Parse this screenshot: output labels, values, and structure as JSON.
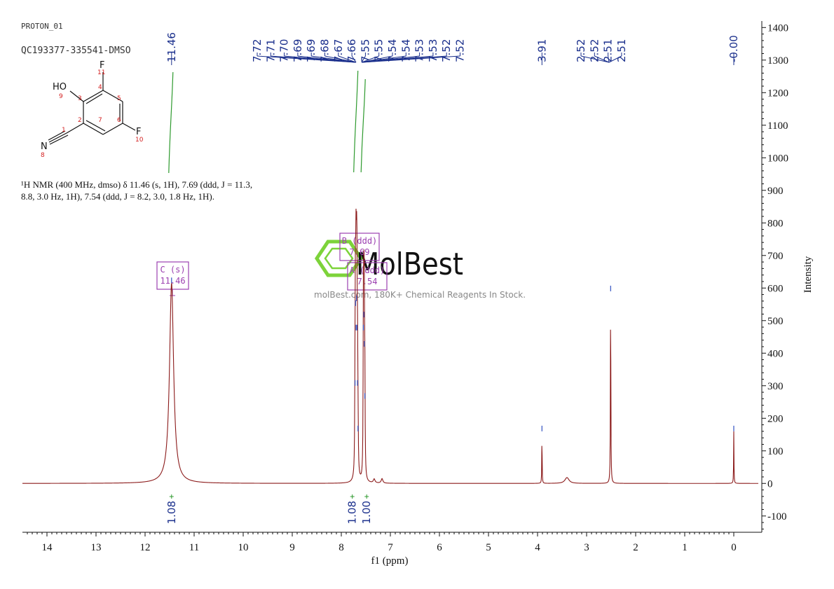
{
  "header": {
    "experiment": "PROTON_01",
    "sample": "QC193377-335541-DMSO"
  },
  "structure": {
    "atoms": [
      {
        "sym": "F",
        "num": "11"
      },
      {
        "sym": "HO",
        "num": "9"
      },
      {
        "sym": "F",
        "num": "10"
      },
      {
        "sym": "N",
        "num": "8"
      }
    ],
    "ring_numbers": [
      "1",
      "2",
      "3",
      "4",
      "5",
      "6",
      "7"
    ]
  },
  "nmr_description": {
    "line1": "¹H NMR (400 MHz, dmso) δ 11.46 (s, 1H), 7.69 (ddd, J = 11.3,",
    "line2": "8.8, 3.0 Hz, 1H), 7.54 (ddd, J = 8.2, 3.0, 1.8 Hz, 1H)."
  },
  "watermark": {
    "brand": "MolBest",
    "tagline": "molBest.com, 180K+ Chemical Reagents In Stock."
  },
  "chart_data": {
    "type": "line",
    "xlabel": "f1 (ppm)",
    "ylabel": "Intensity",
    "xlim": [
      14.5,
      -0.5
    ],
    "ylim": [
      -150,
      1420
    ],
    "x_ticks": [
      "14",
      "13",
      "12",
      "11",
      "10",
      "9",
      "8",
      "7",
      "6",
      "5",
      "4",
      "3",
      "2",
      "1",
      "0"
    ],
    "y_ticks": [
      "1400",
      "1300",
      "1200",
      "1100",
      "1000",
      "900",
      "800",
      "700",
      "600",
      "500",
      "400",
      "300",
      "200",
      "100",
      "0",
      "-100"
    ],
    "line_color": "#8b1a1a",
    "peaks": [
      {
        "ppm": 11.46,
        "height": 615,
        "width": 0.05
      },
      {
        "ppm": 7.72,
        "height": 300,
        "width": 0.006
      },
      {
        "ppm": 7.71,
        "height": 545,
        "width": 0.006
      },
      {
        "ppm": 7.7,
        "height": 470,
        "width": 0.006
      },
      {
        "ppm": 7.69,
        "height": 560,
        "width": 0.006
      },
      {
        "ppm": 7.68,
        "height": 470,
        "width": 0.006
      },
      {
        "ppm": 7.67,
        "height": 300,
        "width": 0.006
      },
      {
        "ppm": 7.66,
        "height": 160,
        "width": 0.006
      },
      {
        "ppm": 7.55,
        "height": 470,
        "width": 0.006
      },
      {
        "ppm": 7.54,
        "height": 510,
        "width": 0.006
      },
      {
        "ppm": 7.53,
        "height": 420,
        "width": 0.006
      },
      {
        "ppm": 7.52,
        "height": 260,
        "width": 0.006
      },
      {
        "ppm": 7.33,
        "height": 12,
        "width": 0.02
      },
      {
        "ppm": 7.17,
        "height": 14,
        "width": 0.02
      },
      {
        "ppm": 3.91,
        "height": 160,
        "width": 0.004
      },
      {
        "ppm": 3.4,
        "height": 18,
        "width": 0.05
      },
      {
        "ppm": 2.51,
        "height": 590,
        "width": 0.005
      },
      {
        "ppm": 0.0,
        "height": 160,
        "width": 0.004
      }
    ],
    "peak_labels": [
      "11.46",
      "7.72",
      "7.71",
      "7.70",
      "7.69",
      "7.69",
      "7.68",
      "7.67",
      "7.66",
      "7.55",
      "7.55",
      "7.54",
      "7.54",
      "7.53",
      "7.53",
      "7.52",
      "7.52",
      "3.91",
      "2.52",
      "2.52",
      "2.51",
      "2.51",
      "-0.00"
    ],
    "peak_label_color": "#1a2f8c",
    "multiplets": [
      {
        "name": "C (s)",
        "shift": "11.46"
      },
      {
        "name": "B (ddd)",
        "shift": "7.69"
      },
      {
        "name": "A (ddd)",
        "shift": "7.54"
      }
    ],
    "multiplet_color": "#9b3fb0",
    "integrals": [
      {
        "center": 11.46,
        "value": "1.08"
      },
      {
        "center": 7.69,
        "value": "1.08"
      },
      {
        "center": 7.54,
        "value": "1.00"
      }
    ],
    "integral_color": "#2e9a2e"
  }
}
